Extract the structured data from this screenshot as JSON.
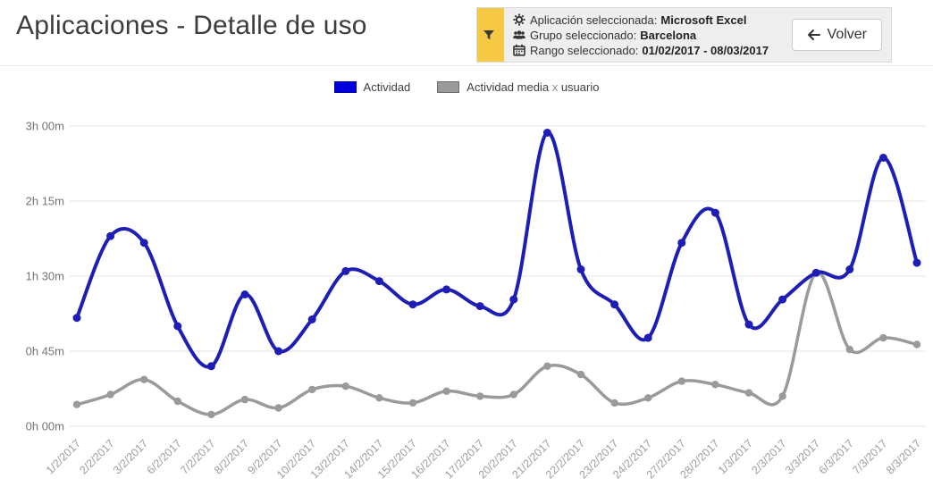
{
  "header": {
    "title": "Aplicaciones - Detalle de uso",
    "filter": {
      "application_label": "Aplicación seleccionada:",
      "application_value": "Microsoft Excel",
      "group_label": "Grupo seleccionado:",
      "group_value": "Barcelona",
      "range_label": "Rango seleccionado:",
      "range_value": "01/02/2017 - 08/03/2017",
      "back_button": "Volver"
    }
  },
  "legend": {
    "actividad": "Actividad",
    "media_part1": "Actividad media",
    "media_x": "x",
    "media_part2": "usuario"
  },
  "icons": {
    "filter-icon": "funnel",
    "gear-icon": "settings gear",
    "users-icon": "user group",
    "calendar-icon": "calendar",
    "arrow-left-icon": "back arrow"
  },
  "colors": {
    "actividad_line": "#1e1eb4",
    "actividad_swatch": "#0000dd",
    "media_line": "#9a9a9a",
    "media_swatch_border": "#6d6d6d",
    "filter_strip": "#f6c945",
    "panel_bg": "#eeeeee",
    "gridline": "#e5e5e5",
    "y_label": "#757575",
    "x_label": "#9e9e9e",
    "background": "#ffffff"
  },
  "chart_data": {
    "type": "line",
    "curve": "smooth",
    "grid": true,
    "legend_position": "top",
    "x": [
      "1/2/2017",
      "2/2/2017",
      "3/2/2017",
      "6/2/2017",
      "7/2/2017",
      "8/2/2017",
      "9/2/2017",
      "10/2/2017",
      "13/2/2017",
      "14/2/2017",
      "15/2/2017",
      "16/2/2017",
      "17/2/2017",
      "20/2/2017",
      "21/2/2017",
      "22/2/2017",
      "23/2/2017",
      "24/2/2017",
      "27/2/2017",
      "28/2/2017",
      "1/3/2017",
      "2/3/2017",
      "3/3/2017",
      "6/3/2017",
      "7/3/2017",
      "8/3/2017"
    ],
    "ylabel_ticks": [
      "0h 00m",
      "0h 45m",
      "1h 30m",
      "2h 15m",
      "3h 00m"
    ],
    "y_tick_minutes": [
      0,
      45,
      90,
      135,
      180
    ],
    "ylim_minutes": [
      0,
      180
    ],
    "series": [
      {
        "id": "actividad",
        "name": "Actividad",
        "color": "#1e1eb4",
        "values_minutes": [
          65,
          114,
          110,
          60,
          36,
          79,
          45,
          64,
          93,
          87,
          73,
          82,
          72,
          76,
          176,
          94,
          73,
          53,
          110,
          128,
          61,
          76,
          92,
          94,
          161,
          98
        ]
      },
      {
        "id": "actividad-media",
        "name": "Actividad media x usuario",
        "color": "#9a9a9a",
        "values_minutes": [
          13,
          19,
          28,
          15,
          7,
          16,
          11,
          22,
          24,
          17,
          14,
          21,
          18,
          19,
          36,
          31,
          14,
          17,
          27,
          25,
          20,
          18,
          92,
          46,
          53,
          49
        ]
      }
    ]
  }
}
